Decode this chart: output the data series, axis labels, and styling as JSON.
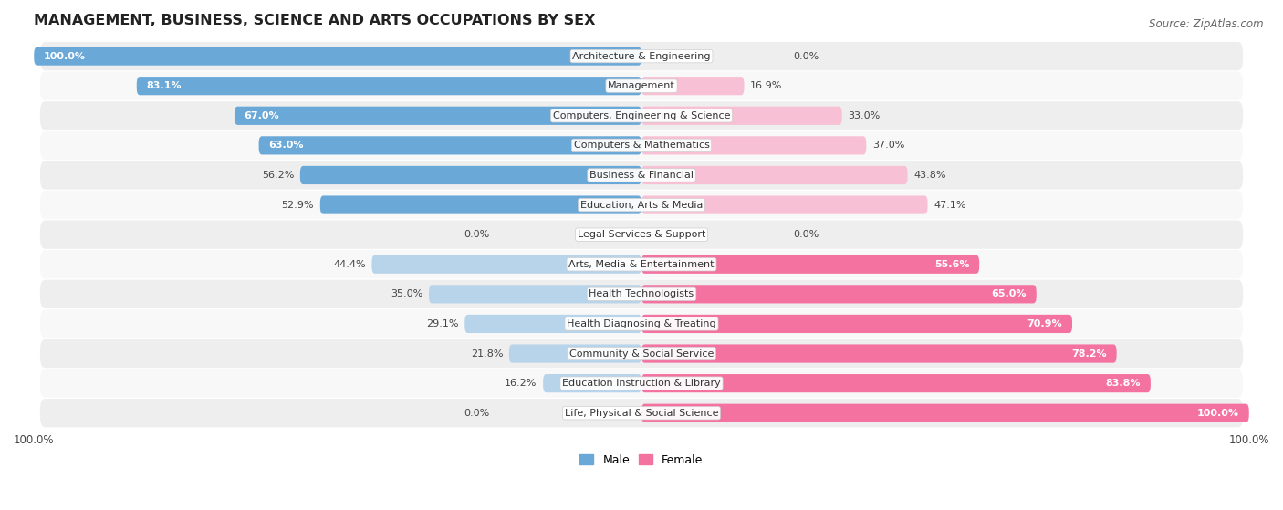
{
  "title": "MANAGEMENT, BUSINESS, SCIENCE AND ARTS OCCUPATIONS BY SEX",
  "source": "Source: ZipAtlas.com",
  "categories": [
    "Architecture & Engineering",
    "Management",
    "Computers, Engineering & Science",
    "Computers & Mathematics",
    "Business & Financial",
    "Education, Arts & Media",
    "Legal Services & Support",
    "Arts, Media & Entertainment",
    "Health Technologists",
    "Health Diagnosing & Treating",
    "Community & Social Service",
    "Education Instruction & Library",
    "Life, Physical & Social Science"
  ],
  "male": [
    100.0,
    83.1,
    67.0,
    63.0,
    56.2,
    52.9,
    0.0,
    44.4,
    35.0,
    29.1,
    21.8,
    16.2,
    0.0
  ],
  "female": [
    0.0,
    16.9,
    33.0,
    37.0,
    43.8,
    47.1,
    0.0,
    55.6,
    65.0,
    70.9,
    78.2,
    83.8,
    100.0
  ],
  "male_color_full": "#6aa8d8",
  "male_color_light": "#b8d4ea",
  "female_color_full": "#f472a0",
  "female_color_light": "#f8c0d4",
  "bg_row_even": "#eeeeee",
  "bg_row_odd": "#f8f8f8",
  "bar_height": 0.62,
  "label_fontsize": 8.0,
  "title_fontsize": 11.5,
  "source_fontsize": 8.5,
  "pct_threshold_inside": 50.0
}
